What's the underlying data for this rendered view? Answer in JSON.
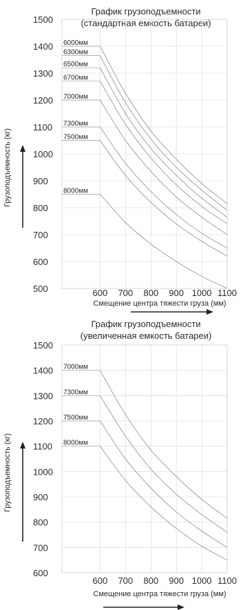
{
  "chart_data": [
    {
      "type": "line",
      "title_line1": "График грузоподъемности",
      "title_line2": "(стандартная емкость батареи)",
      "ylabel": "Грузоподъемность (кг)",
      "xlabel": "Смещение центра тяжести груза (мм)",
      "y_ticks": [
        500,
        600,
        700,
        800,
        900,
        1000,
        1100,
        1200,
        1300,
        1400,
        1500
      ],
      "x_ticks": [
        600,
        700,
        800,
        900,
        1000,
        1100
      ],
      "ylim": [
        500,
        1500
      ],
      "xlim": [
        450,
        1100
      ],
      "grid": true,
      "series": [
        {
          "name": "6000мм",
          "x": [
            600,
            700,
            800,
            900,
            1000,
            1100
          ],
          "y": [
            1400,
            1225,
            1085,
            980,
            890,
            815
          ]
        },
        {
          "name": "6300мм",
          "x": [
            600,
            700,
            800,
            900,
            1000,
            1100
          ],
          "y": [
            1365,
            1190,
            1055,
            950,
            865,
            790
          ]
        },
        {
          "name": "6500мм",
          "x": [
            600,
            700,
            800,
            900,
            1000,
            1100
          ],
          "y": [
            1320,
            1150,
            1020,
            920,
            835,
            765
          ]
        },
        {
          "name": "6700мм",
          "x": [
            600,
            700,
            800,
            900,
            1000,
            1100
          ],
          "y": [
            1270,
            1110,
            985,
            885,
            805,
            740
          ]
        },
        {
          "name": "7000мм",
          "x": [
            600,
            700,
            800,
            900,
            1000,
            1100
          ],
          "y": [
            1200,
            1050,
            935,
            840,
            765,
            700
          ]
        },
        {
          "name": "7300мм",
          "x": [
            600,
            700,
            800,
            900,
            1000,
            1100
          ],
          "y": [
            1100,
            965,
            860,
            775,
            705,
            650
          ]
        },
        {
          "name": "7500мм",
          "x": [
            600,
            700,
            800,
            900,
            1000,
            1100
          ],
          "y": [
            1050,
            920,
            820,
            740,
            675,
            620
          ]
        },
        {
          "name": "8000мм",
          "x": [
            600,
            700,
            800,
            900,
            1000,
            1100
          ],
          "y": [
            850,
            745,
            665,
            600,
            545,
            500
          ]
        }
      ]
    },
    {
      "type": "line",
      "title_line1": "График грузоподъемности",
      "title_line2": "(увеличенная емкость батареи)",
      "ylabel": "Грузоподъемность (кг)",
      "xlabel": "Смещение центра тяжести груза (мм)",
      "y_ticks": [
        600,
        700,
        800,
        900,
        1000,
        1100,
        1200,
        1300,
        1400,
        1500
      ],
      "x_ticks": [
        600,
        700,
        800,
        900,
        1000,
        1100
      ],
      "ylim": [
        600,
        1500
      ],
      "xlim": [
        450,
        1100
      ],
      "grid": true,
      "series": [
        {
          "name": "7000мм",
          "x": [
            600,
            700,
            800,
            900,
            1000,
            1100
          ],
          "y": [
            1400,
            1225,
            1085,
            980,
            890,
            815
          ]
        },
        {
          "name": "7300мм",
          "x": [
            600,
            700,
            800,
            900,
            1000,
            1100
          ],
          "y": [
            1300,
            1140,
            1010,
            910,
            830,
            760
          ]
        },
        {
          "name": "7500мм",
          "x": [
            600,
            700,
            800,
            900,
            1000,
            1100
          ],
          "y": [
            1200,
            1050,
            935,
            840,
            765,
            700
          ]
        },
        {
          "name": "8000мм",
          "x": [
            600,
            700,
            800,
            900,
            1000,
            1100
          ],
          "y": [
            1100,
            965,
            860,
            775,
            705,
            650
          ]
        }
      ]
    }
  ]
}
